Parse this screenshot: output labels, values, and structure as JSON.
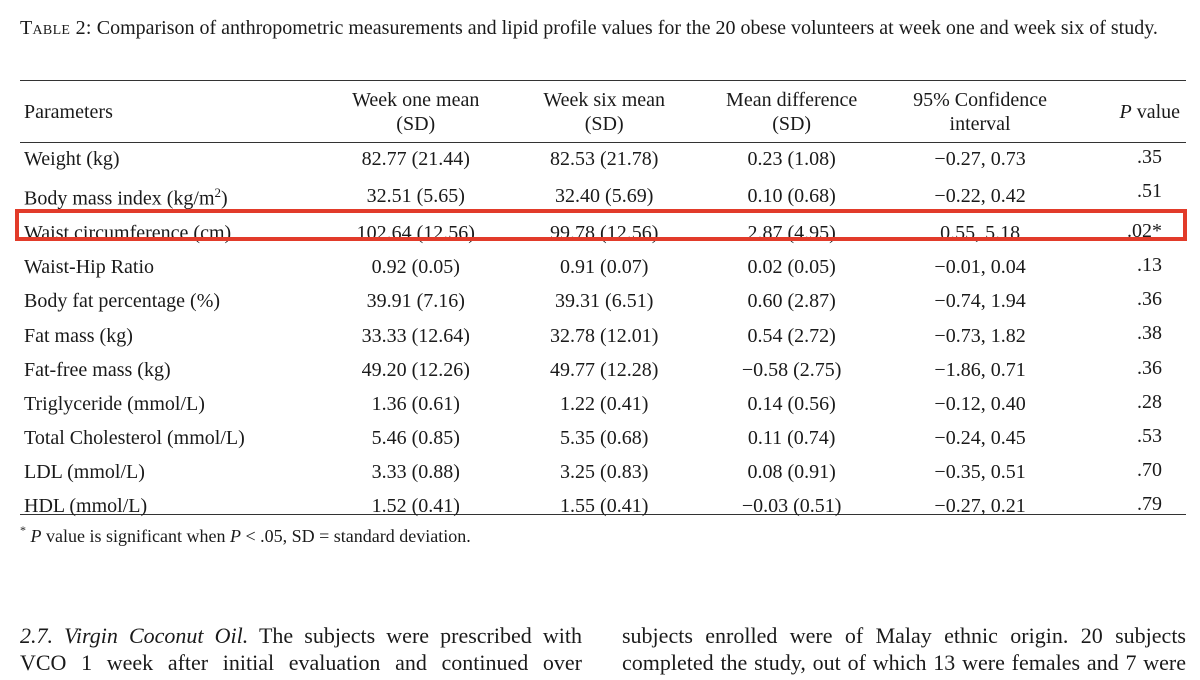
{
  "caption": {
    "label": "Table 2:",
    "text": "Comparison of anthropometric measurements and lipid profile values for the 20 obese volunteers at week one and week six of study."
  },
  "table": {
    "headers": [
      {
        "line1": "Parameters",
        "line2": ""
      },
      {
        "line1": "Week one mean",
        "line2": "(SD)"
      },
      {
        "line1": "Week six mean",
        "line2": "(SD)"
      },
      {
        "line1": "Mean difference",
        "line2": "(SD)"
      },
      {
        "line1": "95% Confidence",
        "line2": "interval"
      },
      {
        "line1": "P",
        "line2": "value"
      }
    ],
    "rows": [
      {
        "param": "Weight (kg)",
        "param_sup": "",
        "param_suffix": "",
        "week1": "82.77 (21.44)",
        "week6": "82.53 (21.78)",
        "diff": "0.23 (1.08)",
        "ci": "−0.27, 0.73",
        "p": ".35"
      },
      {
        "param": "Body mass index (kg/m",
        "param_sup": "2",
        "param_suffix": ")",
        "week1": "32.51 (5.65)",
        "week6": "32.40 (5.69)",
        "diff": "0.10 (0.68)",
        "ci": "−0.22, 0.42",
        "p": ".51"
      },
      {
        "param": "Waist circumference (cm)",
        "param_sup": "",
        "param_suffix": "",
        "week1": "102.64 (12.56)",
        "week6": "99.78 (12.56)",
        "diff": "2.87 (4.95)",
        "ci": "0.55, 5.18",
        "p": ".02*"
      },
      {
        "param": "Waist-Hip Ratio",
        "param_sup": "",
        "param_suffix": "",
        "week1": "0.92 (0.05)",
        "week6": "0.91 (0.07)",
        "diff": "0.02 (0.05)",
        "ci": "−0.01, 0.04",
        "p": ".13"
      },
      {
        "param": "Body fat percentage (%)",
        "param_sup": "",
        "param_suffix": "",
        "week1": "39.91 (7.16)",
        "week6": "39.31 (6.51)",
        "diff": "0.60 (2.87)",
        "ci": "−0.74, 1.94",
        "p": ".36"
      },
      {
        "param": "Fat mass (kg)",
        "param_sup": "",
        "param_suffix": "",
        "week1": "33.33 (12.64)",
        "week6": "32.78 (12.01)",
        "diff": "0.54 (2.72)",
        "ci": "−0.73, 1.82",
        "p": ".38"
      },
      {
        "param": "Fat-free mass (kg)",
        "param_sup": "",
        "param_suffix": "",
        "week1": "49.20 (12.26)",
        "week6": "49.77 (12.28)",
        "diff": "−0.58 (2.75)",
        "ci": "−1.86, 0.71",
        "p": ".36"
      },
      {
        "param": "Triglyceride (mmol/L)",
        "param_sup": "",
        "param_suffix": "",
        "week1": "1.36 (0.61)",
        "week6": "1.22 (0.41)",
        "diff": "0.14 (0.56)",
        "ci": "−0.12, 0.40",
        "p": ".28"
      },
      {
        "param": "Total Cholesterol (mmol/L)",
        "param_sup": "",
        "param_suffix": "",
        "week1": "5.46 (0.85)",
        "week6": "5.35 (0.68)",
        "diff": "0.11 (0.74)",
        "ci": "−0.24, 0.45",
        "p": ".53"
      },
      {
        "param": "LDL (mmol/L)",
        "param_sup": "",
        "param_suffix": "",
        "week1": "3.33 (0.88)",
        "week6": "3.25 (0.83)",
        "diff": "0.08 (0.91)",
        "ci": "−0.35, 0.51",
        "p": ".70"
      },
      {
        "param": "HDL (mmol/L)",
        "param_sup": "",
        "param_suffix": "",
        "week1": "1.52 (0.41)",
        "week6": "1.55 (0.41)",
        "diff": "−0.03 (0.51)",
        "ci": "−0.27, 0.21",
        "p": ".79"
      }
    ],
    "highlight_color": "#e23b2a"
  },
  "footnote": {
    "marker": "*",
    "p_letter": "P",
    "text1": " value is significant when ",
    "p_letter2": "P",
    "text2": " < .05, SD = standard deviation."
  },
  "body_text": {
    "left": {
      "section_title": "2.7. Virgin Coconut Oil.",
      "line1_rest": " The subjects were prescribed with",
      "line2": "VCO 1 week after initial evaluation and continued over"
    },
    "right": {
      "line1": "subjects enrolled were of Malay ethnic origin. 20 subjects",
      "line2": "completed the study, out of which 13 were females and 7 were"
    }
  }
}
